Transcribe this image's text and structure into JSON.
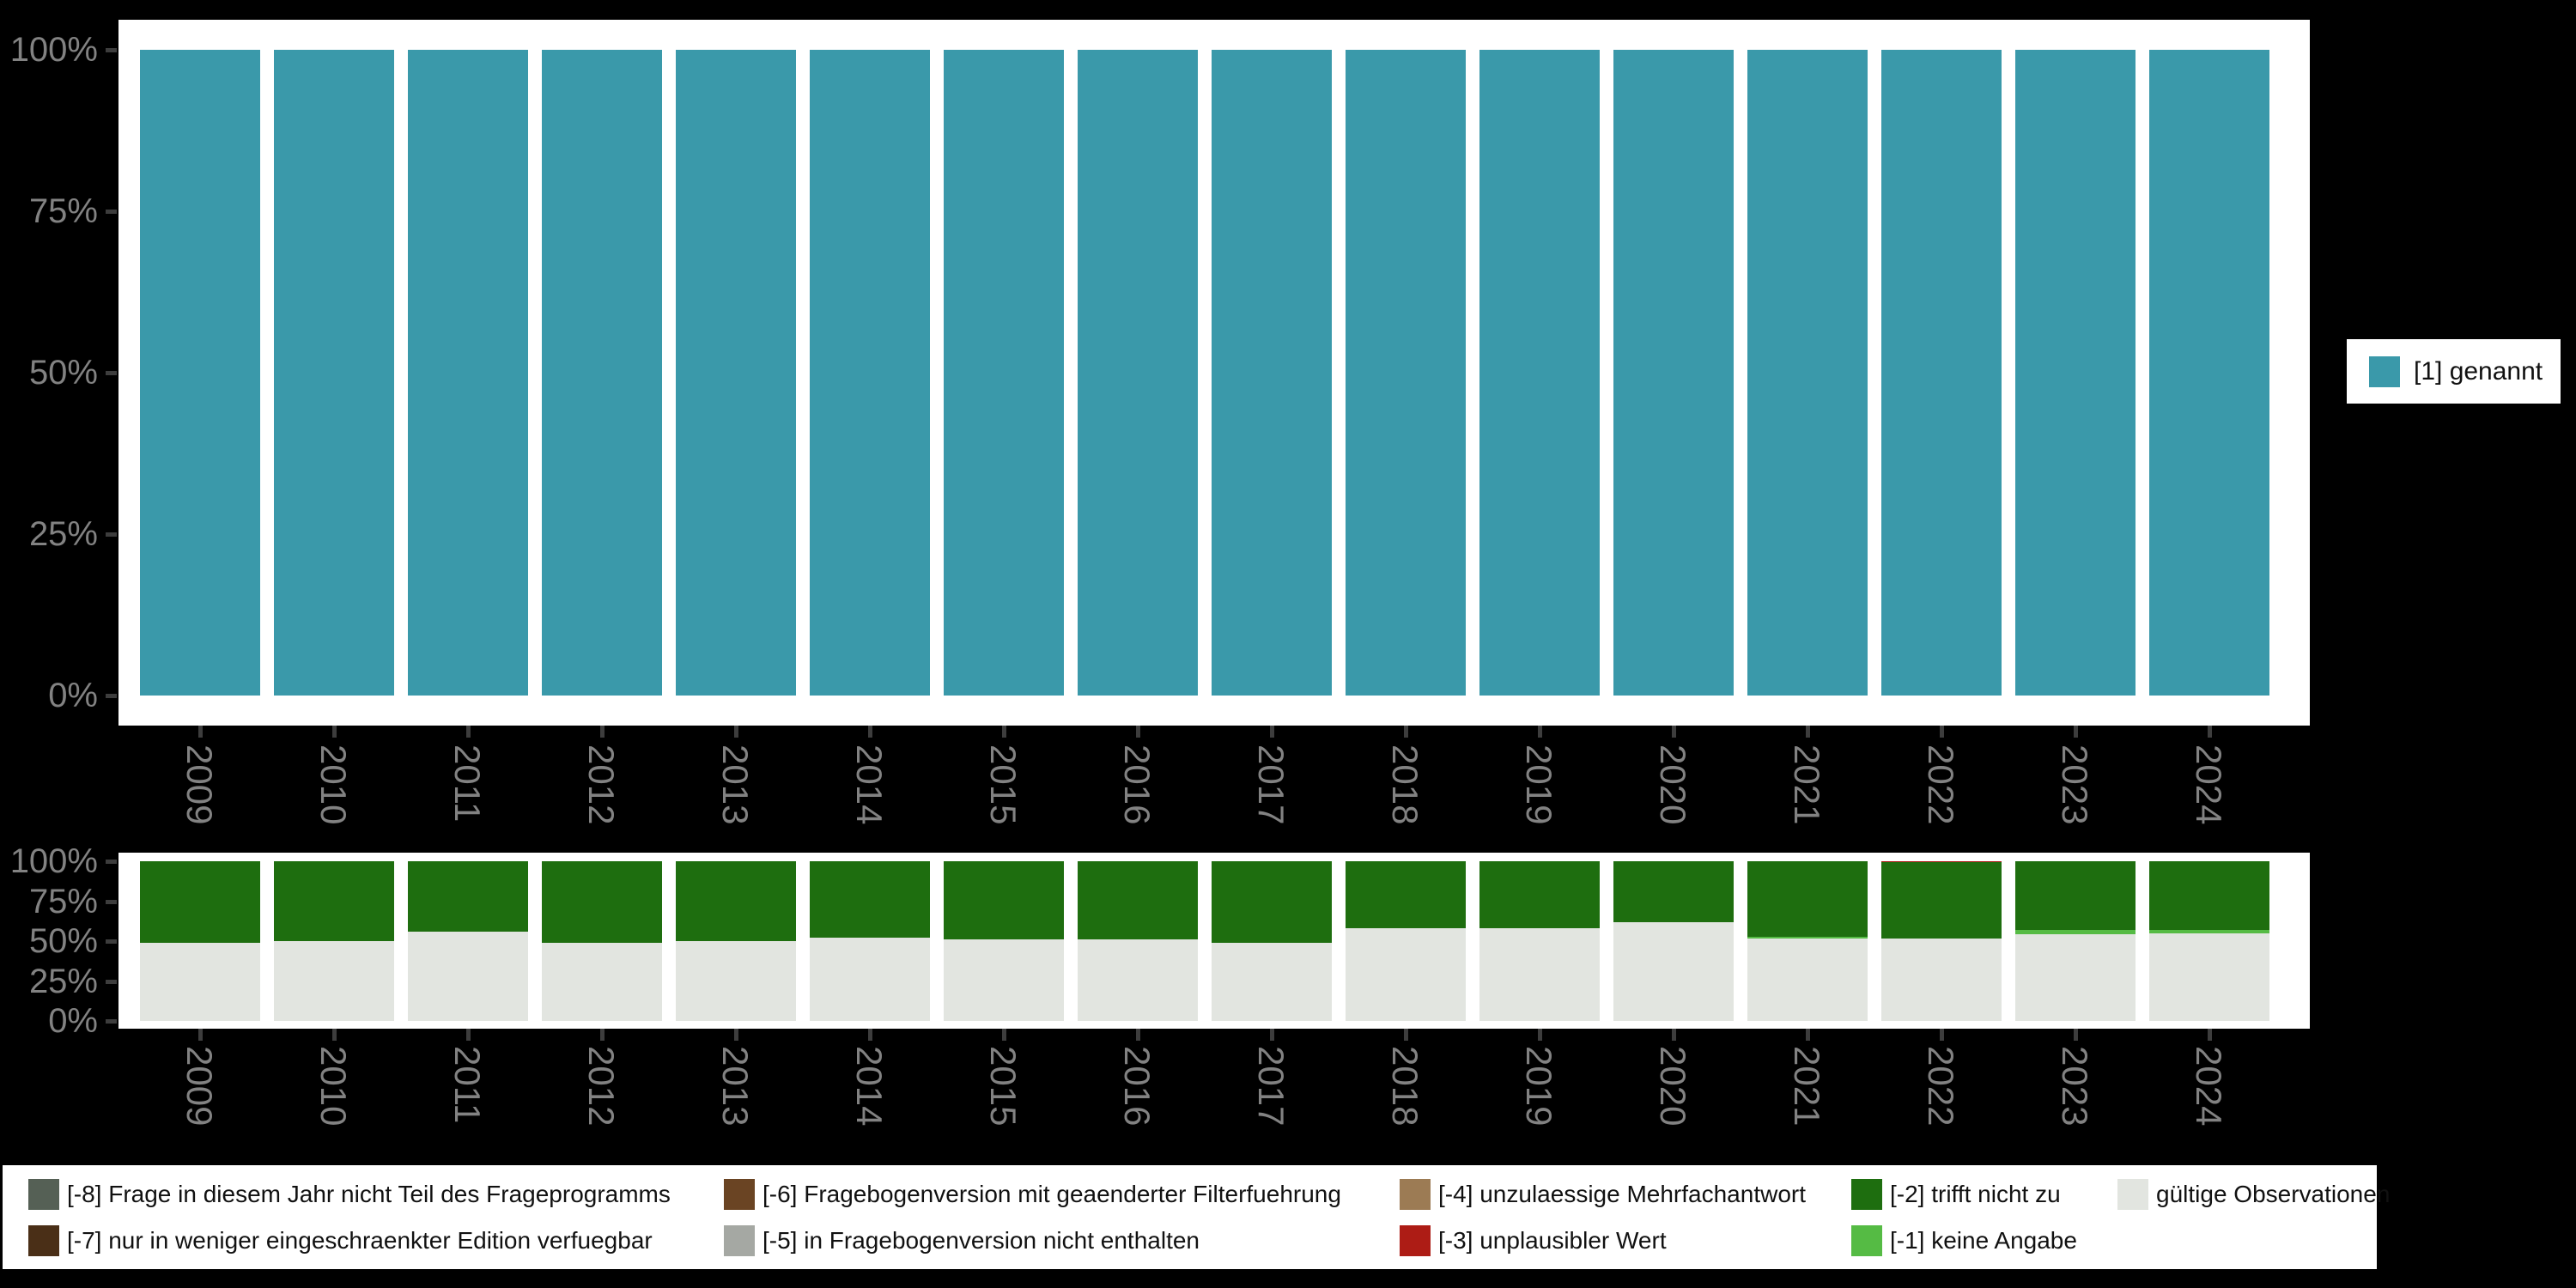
{
  "colors": {
    "background": "#000000",
    "panel": "#ffffff",
    "axis_label": "#828282",
    "tick_mark": "#3d3d3d",
    "legend_text": "#111111",
    "genannt_teal": "#3a99aa",
    "valid_gray": "#e2e5e0",
    "trifft_nicht_zu_green": "#1e6e0f",
    "keine_angabe_lightgreen": "#55bb44",
    "unplausibler_wert_red": "#ad1c15"
  },
  "top_legend": {
    "label": "[1] genannt",
    "swatch_color": "#3a99aa"
  },
  "missing_legend": {
    "columns": [
      [
        {
          "label": "[-8] Frage in diesem Jahr nicht Teil des Frageprogramms",
          "color": "#556055"
        },
        {
          "label": "[-7] nur in weniger eingeschraenkter Edition verfuegbar",
          "color": "#4a2f17"
        }
      ],
      [
        {
          "label": "[-6] Fragebogenversion mit geaenderter Filterfuehrung",
          "color": "#6a4423"
        },
        {
          "label": "[-5] in Fragebogenversion nicht enthalten",
          "color": "#a5a8a3"
        }
      ],
      [
        {
          "label": "[-4] unzulaessige Mehrfachantwort",
          "color": "#9c7b54"
        },
        {
          "label": "[-3] unplausibler Wert",
          "color": "#ad1c15"
        }
      ],
      [
        {
          "label": "[-2] trifft nicht zu",
          "color": "#1e6e0f"
        },
        {
          "label": "[-1] keine Angabe",
          "color": "#55bb44"
        }
      ],
      [
        {
          "label": "gültige Observationen",
          "color": "#e2e5e0"
        }
      ]
    ]
  },
  "chart_data": [
    {
      "type": "bar",
      "stacked": true,
      "title": "",
      "xlabel": "",
      "ylabel": "",
      "grid": false,
      "legend_position": "right",
      "ylim": [
        0,
        100
      ],
      "yticks": [
        "0%",
        "25%",
        "50%",
        "75%",
        "100%"
      ],
      "categories": [
        "2009",
        "2010",
        "2011",
        "2012",
        "2013",
        "2014",
        "2015",
        "2016",
        "2017",
        "2018",
        "2019",
        "2020",
        "2021",
        "2022",
        "2023",
        "2024"
      ],
      "series": [
        {
          "name": "[1] genannt",
          "color": "#3a99aa",
          "values": [
            100,
            100,
            100,
            100,
            100,
            100,
            100,
            100,
            100,
            100,
            100,
            100,
            100,
            100,
            100,
            100
          ]
        }
      ]
    },
    {
      "type": "bar",
      "stacked": true,
      "title": "",
      "xlabel": "",
      "ylabel": "",
      "grid": false,
      "legend_position": "bottom",
      "ylim": [
        0,
        100
      ],
      "yticks": [
        "0%",
        "25%",
        "50%",
        "75%",
        "100%"
      ],
      "categories": [
        "2009",
        "2010",
        "2011",
        "2012",
        "2013",
        "2014",
        "2015",
        "2016",
        "2017",
        "2018",
        "2019",
        "2020",
        "2021",
        "2022",
        "2023",
        "2024"
      ],
      "series": [
        {
          "name": "gültige Observationen",
          "color": "#e2e5e0",
          "values": [
            49,
            50,
            56,
            49,
            50,
            52,
            51,
            51,
            49,
            58,
            58,
            62,
            51.5,
            51.5,
            54.5,
            55
          ]
        },
        {
          "name": "[-1] keine Angabe",
          "color": "#55bb44",
          "values": [
            0,
            0,
            0,
            0,
            0,
            0,
            0,
            0,
            0,
            0,
            0,
            0,
            1.2,
            0,
            2.5,
            2
          ]
        },
        {
          "name": "[-2] trifft nicht zu",
          "color": "#1e6e0f",
          "values": [
            51,
            50,
            44,
            51,
            50,
            48,
            49,
            49,
            51,
            42,
            42,
            38,
            47.3,
            48,
            43,
            43
          ]
        },
        {
          "name": "[-3] unplausibler Wert",
          "color": "#ad1c15",
          "values": [
            0,
            0,
            0,
            0,
            0,
            0,
            0,
            0,
            0,
            0,
            0,
            0,
            0,
            0.5,
            0,
            0
          ]
        }
      ]
    }
  ]
}
